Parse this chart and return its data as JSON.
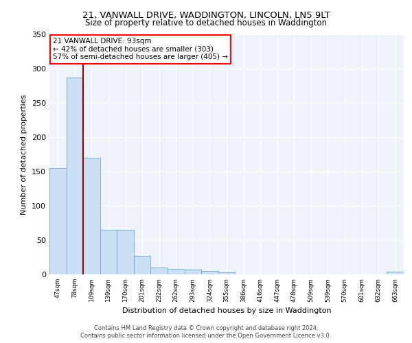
{
  "title1": "21, VANWALL DRIVE, WADDINGTON, LINCOLN, LN5 9LT",
  "title2": "Size of property relative to detached houses in Waddington",
  "xlabel": "Distribution of detached houses by size in Waddington",
  "ylabel": "Number of detached properties",
  "categories": [
    "47sqm",
    "78sqm",
    "109sqm",
    "139sqm",
    "170sqm",
    "201sqm",
    "232sqm",
    "262sqm",
    "293sqm",
    "324sqm",
    "355sqm",
    "386sqm",
    "416sqm",
    "447sqm",
    "478sqm",
    "509sqm",
    "539sqm",
    "570sqm",
    "601sqm",
    "632sqm",
    "663sqm"
  ],
  "values": [
    155,
    287,
    170,
    65,
    65,
    27,
    10,
    8,
    7,
    5,
    3,
    0,
    0,
    0,
    0,
    0,
    0,
    0,
    0,
    0,
    4
  ],
  "bar_color": "#cce0f5",
  "bar_edgecolor": "#7aafd4",
  "redline_x": 1.5,
  "annotation_line1": "21 VANWALL DRIVE: 93sqm",
  "annotation_line2": "← 42% of detached houses are smaller (303)",
  "annotation_line3": "57% of semi-detached houses are larger (405) →",
  "annotation_box_color": "white",
  "annotation_box_edgecolor": "red",
  "redline_color": "#8b0000",
  "ylim": [
    0,
    350
  ],
  "yticks": [
    0,
    50,
    100,
    150,
    200,
    250,
    300,
    350
  ],
  "background_color": "#edf2fb",
  "grid_color": "white",
  "footer_line1": "Contains HM Land Registry data © Crown copyright and database right 2024.",
  "footer_line2": "Contains public sector information licensed under the Open Government Licence v3.0."
}
